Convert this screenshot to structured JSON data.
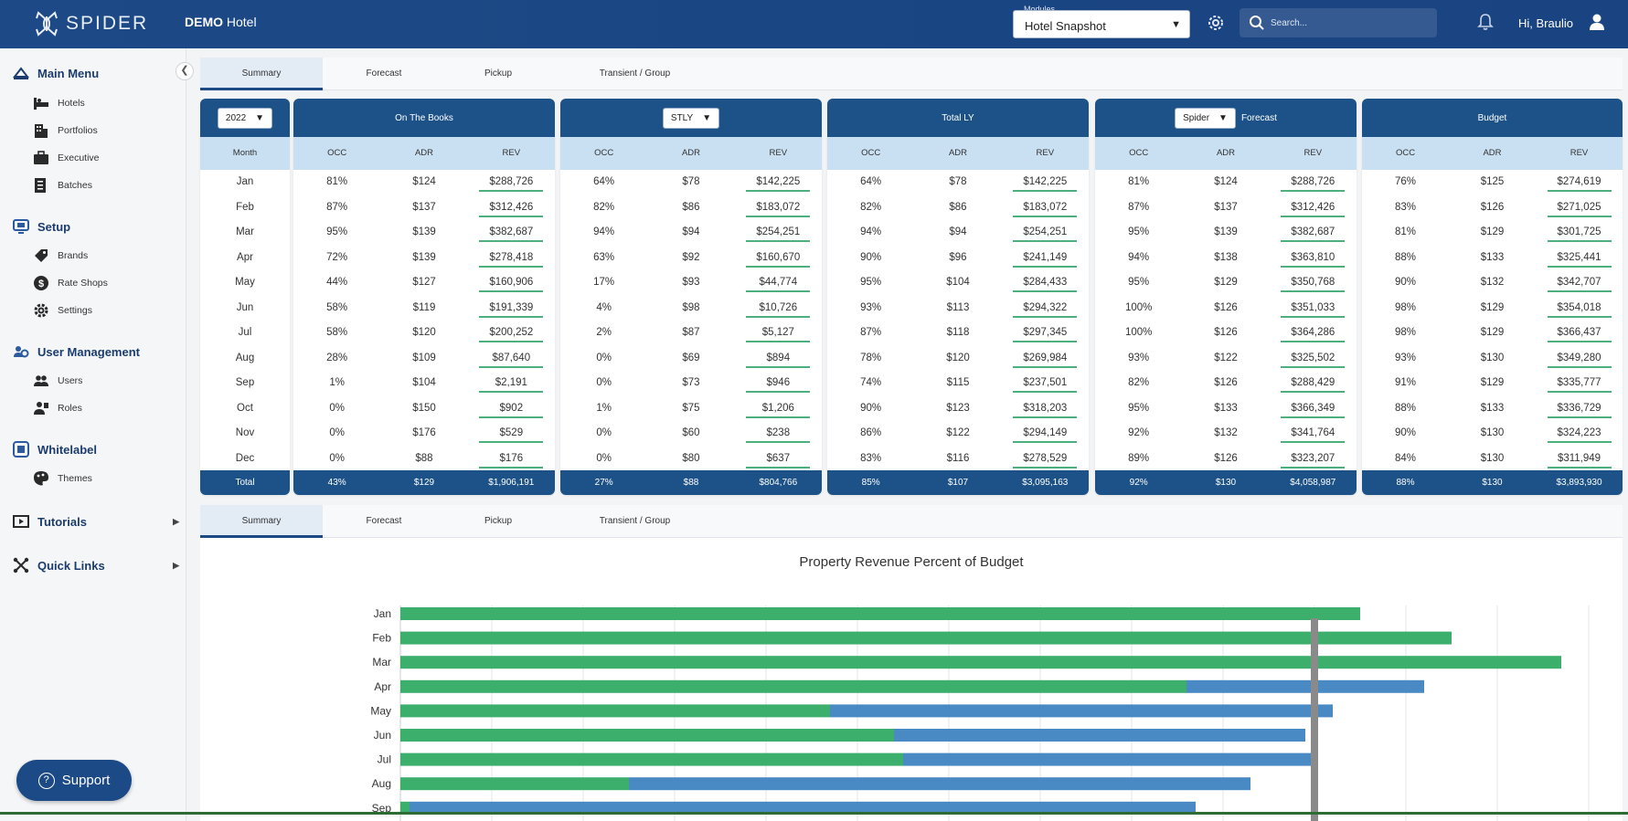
{
  "header": {
    "brand": "SPIDER",
    "hotel_prefix": "DEMO",
    "hotel_name": "Hotel",
    "modules_caption": "Modules",
    "modules_value": "Hotel Snapshot",
    "search_placeholder": "Search...",
    "greeting": "Hi, Braulio"
  },
  "sidebar": {
    "sections": [
      {
        "label": "Main Menu",
        "icon": "cap-icon",
        "items": [
          {
            "label": "Hotels",
            "icon": "bed-icon"
          },
          {
            "label": "Portfolios",
            "icon": "building-icon"
          },
          {
            "label": "Executive",
            "icon": "briefcase-icon"
          },
          {
            "label": "Batches",
            "icon": "batch-icon"
          }
        ]
      },
      {
        "label": "Setup",
        "icon": "monitor-icon",
        "items": [
          {
            "label": "Brands",
            "icon": "tag-icon"
          },
          {
            "label": "Rate Shops",
            "icon": "dollar-icon"
          },
          {
            "label": "Settings",
            "icon": "gear-icon"
          }
        ]
      },
      {
        "label": "User Management",
        "icon": "users-gear-icon",
        "items": [
          {
            "label": "Users",
            "icon": "users-icon"
          },
          {
            "label": "Roles",
            "icon": "role-icon"
          }
        ]
      },
      {
        "label": "Whitelabel",
        "icon": "whitelabel-icon",
        "items": [
          {
            "label": "Themes",
            "icon": "palette-icon"
          }
        ]
      },
      {
        "label": "Tutorials",
        "icon": "tutorial-icon",
        "items": []
      },
      {
        "label": "Quick Links",
        "icon": "links-icon",
        "items": []
      }
    ],
    "support_label": "Support"
  },
  "tabs": [
    "Summary",
    "Forecast",
    "Pickup",
    "Transient / Group"
  ],
  "table": {
    "year": "2022",
    "month_header": "Month",
    "months": [
      "Jan",
      "Feb",
      "Mar",
      "Apr",
      "May",
      "Jun",
      "Jul",
      "Aug",
      "Sep",
      "Oct",
      "Nov",
      "Dec"
    ],
    "total_label": "Total",
    "col_labels": [
      "OCC",
      "ADR",
      "REV"
    ],
    "panels": [
      {
        "title": "On The Books",
        "type": "plain",
        "rows": [
          [
            "81%",
            "$124",
            "$288,726"
          ],
          [
            "87%",
            "$137",
            "$312,426"
          ],
          [
            "95%",
            "$139",
            "$382,687"
          ],
          [
            "72%",
            "$139",
            "$278,418"
          ],
          [
            "44%",
            "$127",
            "$160,906"
          ],
          [
            "58%",
            "$119",
            "$191,339"
          ],
          [
            "58%",
            "$120",
            "$200,252"
          ],
          [
            "28%",
            "$109",
            "$87,640"
          ],
          [
            "1%",
            "$104",
            "$2,191"
          ],
          [
            "0%",
            "$150",
            "$902"
          ],
          [
            "0%",
            "$176",
            "$529"
          ],
          [
            "0%",
            "$88",
            "$176"
          ]
        ],
        "total": [
          "43%",
          "$129",
          "$1,906,191"
        ]
      },
      {
        "title": "STLY",
        "type": "select",
        "rows": [
          [
            "64%",
            "$78",
            "$142,225"
          ],
          [
            "82%",
            "$86",
            "$183,072"
          ],
          [
            "94%",
            "$94",
            "$254,251"
          ],
          [
            "63%",
            "$92",
            "$160,670"
          ],
          [
            "17%",
            "$93",
            "$44,774"
          ],
          [
            "4%",
            "$98",
            "$10,726"
          ],
          [
            "2%",
            "$87",
            "$5,127"
          ],
          [
            "0%",
            "$69",
            "$894"
          ],
          [
            "0%",
            "$73",
            "$946"
          ],
          [
            "1%",
            "$75",
            "$1,206"
          ],
          [
            "0%",
            "$60",
            "$238"
          ],
          [
            "0%",
            "$80",
            "$637"
          ]
        ],
        "total": [
          "27%",
          "$88",
          "$804,766"
        ]
      },
      {
        "title": "Total LY",
        "type": "plain",
        "rows": [
          [
            "64%",
            "$78",
            "$142,225"
          ],
          [
            "82%",
            "$86",
            "$183,072"
          ],
          [
            "94%",
            "$94",
            "$254,251"
          ],
          [
            "90%",
            "$96",
            "$241,149"
          ],
          [
            "95%",
            "$104",
            "$284,433"
          ],
          [
            "93%",
            "$113",
            "$294,322"
          ],
          [
            "87%",
            "$118",
            "$297,345"
          ],
          [
            "78%",
            "$120",
            "$269,984"
          ],
          [
            "74%",
            "$115",
            "$237,501"
          ],
          [
            "90%",
            "$123",
            "$318,203"
          ],
          [
            "86%",
            "$122",
            "$294,149"
          ],
          [
            "83%",
            "$116",
            "$278,529"
          ]
        ],
        "total": [
          "85%",
          "$107",
          "$3,095,163"
        ]
      },
      {
        "title": "Spider",
        "suffix": "Forecast",
        "type": "select-suffix",
        "rows": [
          [
            "81%",
            "$124",
            "$288,726"
          ],
          [
            "87%",
            "$137",
            "$312,426"
          ],
          [
            "95%",
            "$139",
            "$382,687"
          ],
          [
            "94%",
            "$138",
            "$363,810"
          ],
          [
            "95%",
            "$129",
            "$350,768"
          ],
          [
            "100%",
            "$126",
            "$351,033"
          ],
          [
            "100%",
            "$126",
            "$364,286"
          ],
          [
            "93%",
            "$122",
            "$325,502"
          ],
          [
            "82%",
            "$126",
            "$288,429"
          ],
          [
            "95%",
            "$133",
            "$366,349"
          ],
          [
            "92%",
            "$132",
            "$341,764"
          ],
          [
            "89%",
            "$126",
            "$323,207"
          ]
        ],
        "total": [
          "92%",
          "$130",
          "$4,058,987"
        ]
      },
      {
        "title": "Budget",
        "type": "plain",
        "rows": [
          [
            "76%",
            "$125",
            "$274,619"
          ],
          [
            "83%",
            "$126",
            "$271,025"
          ],
          [
            "81%",
            "$129",
            "$301,725"
          ],
          [
            "88%",
            "$133",
            "$325,441"
          ],
          [
            "90%",
            "$132",
            "$342,707"
          ],
          [
            "98%",
            "$129",
            "$354,018"
          ],
          [
            "98%",
            "$129",
            "$366,437"
          ],
          [
            "93%",
            "$130",
            "$349,280"
          ],
          [
            "91%",
            "$129",
            "$335,777"
          ],
          [
            "88%",
            "$133",
            "$336,729"
          ],
          [
            "90%",
            "$130",
            "$324,223"
          ],
          [
            "84%",
            "$130",
            "$311,949"
          ]
        ],
        "total": [
          "88%",
          "$130",
          "$3,893,930"
        ]
      }
    ]
  },
  "colors": {
    "primary": "#1d5288",
    "subheader": "#c9dff2",
    "green": "#3daf6c",
    "blue": "#4a8ac4"
  },
  "chart_data": {
    "type": "bar",
    "orientation": "horizontal",
    "stacked": true,
    "title": "Property Revenue Percent of Budget",
    "categories": [
      "Jan",
      "Feb",
      "Mar",
      "Apr",
      "May",
      "Jun",
      "Jul",
      "Aug",
      "Sep"
    ],
    "series": [
      {
        "color": "#3daf6c",
        "values": [
          105,
          115,
          127,
          86,
          47,
          54,
          55,
          25,
          1
        ]
      },
      {
        "color": "#4a8ac4",
        "values": [
          0,
          0,
          0,
          26,
          55,
          45,
          45,
          68,
          86
        ]
      }
    ],
    "reference_value": 100,
    "xlim": [
      0,
      130
    ],
    "grid": true,
    "visible_categories_count": 9
  }
}
